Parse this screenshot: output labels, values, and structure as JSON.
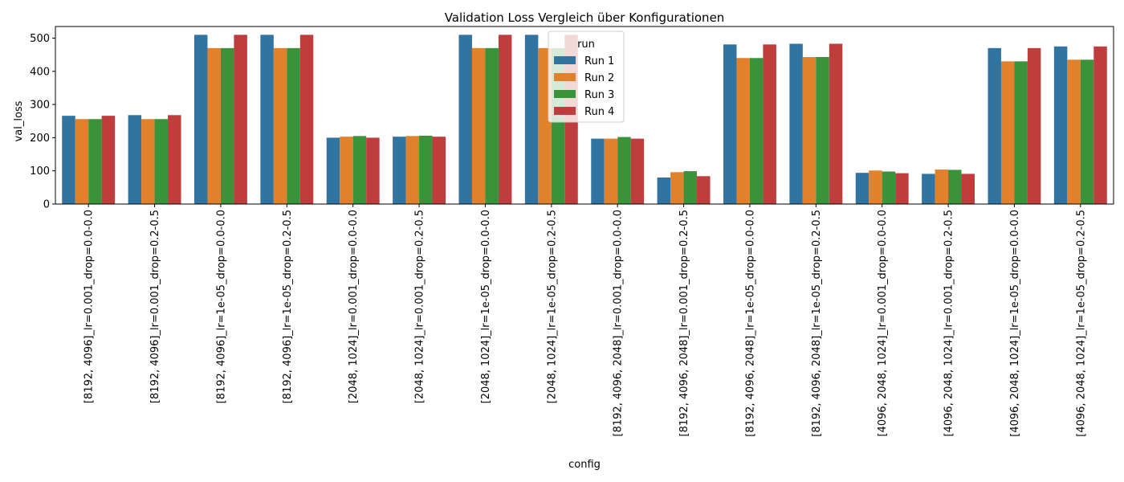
{
  "chart_data": {
    "type": "bar",
    "title": "Validation Loss Vergleich über Konfigurationen",
    "xlabel": "config",
    "ylabel": "val_loss",
    "ylim": [
      0,
      535
    ],
    "yticks": [
      0,
      100,
      200,
      300,
      400,
      500
    ],
    "grid": false,
    "legend": {
      "title": "run",
      "placement": "top-center"
    },
    "categories": [
      "[8192, 4096]_lr=0.001_drop=0.0-0.0",
      "[8192, 4096]_lr=0.001_drop=0.2-0.5",
      "[8192, 4096]_lr=1e-05_drop=0.0-0.0",
      "[8192, 4096]_lr=1e-05_drop=0.2-0.5",
      "[2048, 1024]_lr=0.001_drop=0.0-0.0",
      "[2048, 1024]_lr=0.001_drop=0.2-0.5",
      "[2048, 1024]_lr=1e-05_drop=0.0-0.0",
      "[2048, 1024]_lr=1e-05_drop=0.2-0.5",
      "[8192, 4096, 2048]_lr=0.001_drop=0.0-0.0",
      "[8192, 4096, 2048]_lr=0.001_drop=0.2-0.5",
      "[8192, 4096, 2048]_lr=1e-05_drop=0.0-0.0",
      "[8192, 4096, 2048]_lr=1e-05_drop=0.2-0.5",
      "[4096, 2048, 1024]_lr=0.001_drop=0.0-0.0",
      "[4096, 2048, 1024]_lr=0.001_drop=0.2-0.5",
      "[4096, 2048, 1024]_lr=1e-05_drop=0.0-0.0",
      "[4096, 2048, 1024]_lr=1e-05_drop=0.2-0.5"
    ],
    "series": [
      {
        "name": "Run 1",
        "color": "#3274a1",
        "values": [
          266,
          268,
          510,
          510,
          200,
          203,
          510,
          510,
          197,
          80,
          481,
          483,
          94,
          91,
          470,
          475
        ]
      },
      {
        "name": "Run 2",
        "color": "#e1812c",
        "values": [
          256,
          256,
          470,
          470,
          203,
          205,
          470,
          470,
          197,
          96,
          440,
          443,
          101,
          104,
          430,
          435
        ]
      },
      {
        "name": "Run 3",
        "color": "#3a923a",
        "values": [
          256,
          256,
          470,
          470,
          205,
          206,
          470,
          470,
          202,
          99,
          440,
          443,
          98,
          103,
          430,
          435
        ]
      },
      {
        "name": "Run 4",
        "color": "#c03d3e",
        "values": [
          266,
          268,
          510,
          510,
          200,
          203,
          510,
          510,
          197,
          84,
          481,
          483,
          93,
          91,
          470,
          475
        ]
      }
    ]
  }
}
